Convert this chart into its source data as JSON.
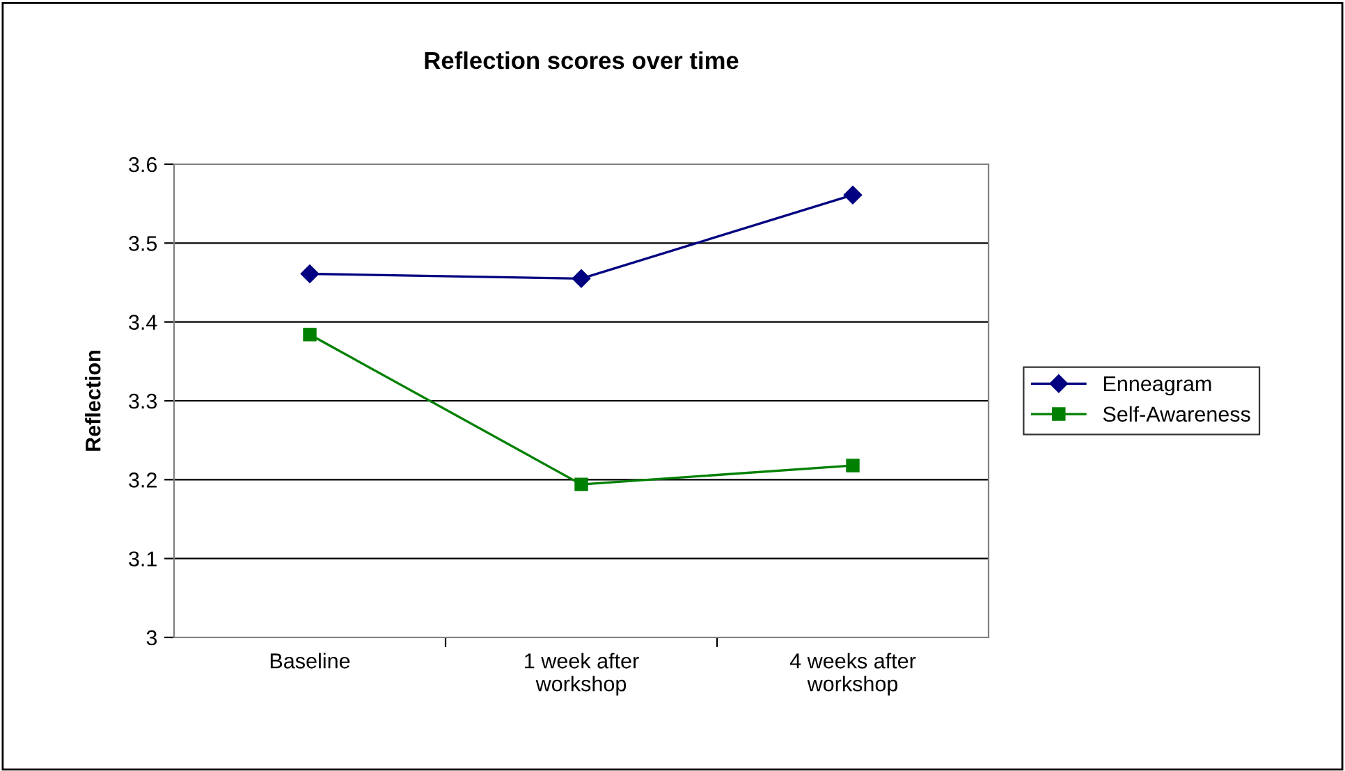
{
  "chart_data": {
    "type": "line",
    "title": "Reflection scores over time",
    "ylabel": "Reflection",
    "categories": [
      "Baseline",
      "1 week after\nworkshop",
      "4 weeks after\nworkshop"
    ],
    "series": [
      {
        "name": "Enneagram",
        "color": "#000080",
        "marker": "diamond",
        "values": [
          3.461,
          3.455,
          3.561
        ]
      },
      {
        "name": "Self-Awareness",
        "color": "#008000",
        "marker": "square",
        "values": [
          3.384,
          3.194,
          3.218
        ]
      }
    ],
    "ylim": [
      3,
      3.6
    ],
    "yticks": [
      3,
      3.1,
      3.2,
      3.3,
      3.4,
      3.5,
      3.6
    ],
    "grid": "y",
    "legend": "right"
  }
}
